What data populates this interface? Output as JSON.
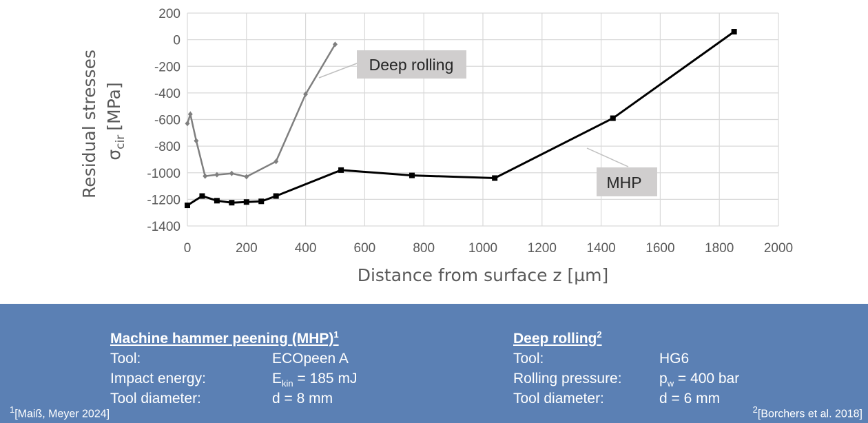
{
  "chart_data": {
    "type": "line",
    "xlabel": "Distance from surface z [µm]",
    "ylabel_line1": "Residual stresses",
    "ylabel_sigma": "σ",
    "ylabel_sub": "cir",
    "ylabel_unit": "[MPa]",
    "xlim": [
      0,
      2000
    ],
    "ylim": [
      -1400,
      200
    ],
    "xticks": [
      0,
      200,
      400,
      600,
      800,
      1000,
      1200,
      1400,
      1600,
      1800,
      2000
    ],
    "yticks": [
      200,
      0,
      -200,
      -400,
      -600,
      -800,
      -1000,
      -1200,
      -1400
    ],
    "grid": true,
    "series": [
      {
        "name": "Deep rolling",
        "color": "#7f7f7f",
        "marker": "diamond",
        "points": [
          [
            0,
            -630
          ],
          [
            10,
            -560
          ],
          [
            30,
            -760
          ],
          [
            60,
            -1025
          ],
          [
            100,
            -1015
          ],
          [
            150,
            -1005
          ],
          [
            200,
            -1030
          ],
          [
            300,
            -915
          ],
          [
            400,
            -410
          ],
          [
            500,
            -35
          ]
        ]
      },
      {
        "name": "MHP",
        "color": "#000000",
        "marker": "square",
        "points": [
          [
            0,
            -1245
          ],
          [
            50,
            -1175
          ],
          [
            100,
            -1210
          ],
          [
            150,
            -1225
          ],
          [
            200,
            -1220
          ],
          [
            250,
            -1215
          ],
          [
            300,
            -1175
          ],
          [
            520,
            -980
          ],
          [
            760,
            -1020
          ],
          [
            1040,
            -1040
          ],
          [
            1440,
            -590
          ],
          [
            1850,
            60
          ]
        ]
      }
    ]
  },
  "panel": {
    "bg_color": "#5b80b4",
    "mhp": {
      "title": "Machine hammer peening (MHP)",
      "title_sup": "1",
      "rows": [
        {
          "label": "Tool:",
          "value": "ECOpeen A"
        },
        {
          "label": "Impact energy:",
          "value_pre": "E",
          "value_sub": "kin",
          "value_post": " = 185 mJ"
        },
        {
          "label": "Tool diameter:",
          "value": "d = 8 mm"
        }
      ]
    },
    "rolling": {
      "title": "Deep rolling",
      "title_sup": "2",
      "rows": [
        {
          "label": "Tool:",
          "value": "HG6"
        },
        {
          "label": "Rolling pressure:",
          "value_pre": "p",
          "value_sub": "w",
          "value_post": " = 400 bar"
        },
        {
          "label": "Tool diameter:",
          "value": "d = 6 mm"
        }
      ]
    },
    "ref_left_sup": "1",
    "ref_left": "[Maiß, Meyer 2024]",
    "ref_right_sup": "2",
    "ref_right": "[Borchers et al. 2018]"
  }
}
